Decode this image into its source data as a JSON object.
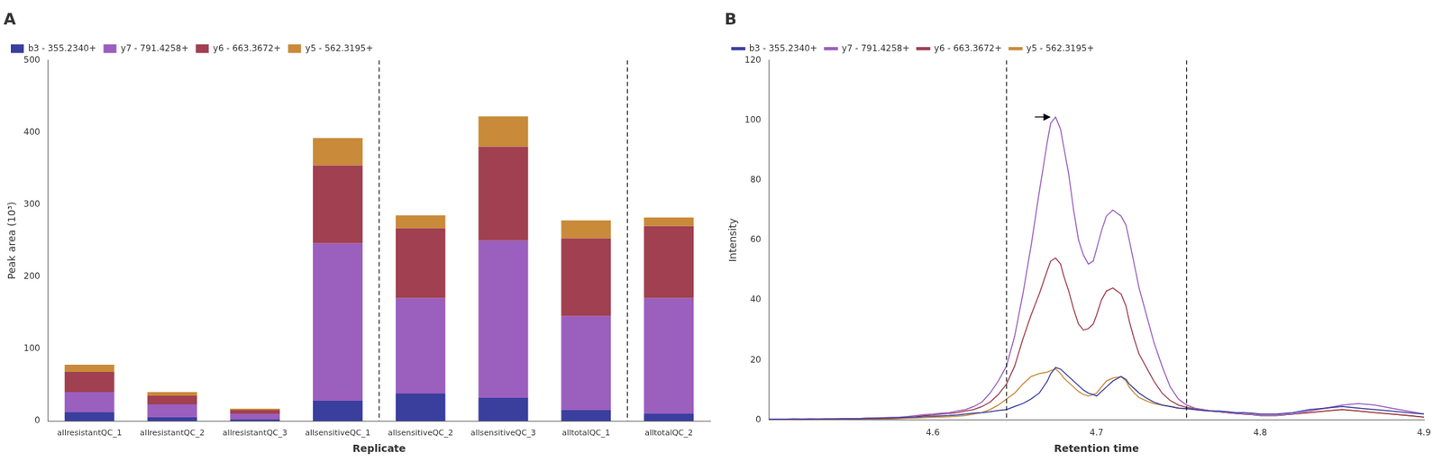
{
  "chart_data": [
    {
      "type": "bar",
      "title": "A",
      "stacked": true,
      "categories": [
        "allresistantQC_1",
        "allresistantQC_2",
        "allresistantQC_3",
        "allsensitiveQC_1",
        "allsensitiveQC_2",
        "allsensitiveQC_3",
        "alltotalQC_1",
        "alltotalQC_2"
      ],
      "series": [
        {
          "name": "b3 - 355.2340+",
          "color": "#3A3F9E",
          "values": [
            12,
            5,
            2,
            28,
            38,
            32,
            15,
            10
          ]
        },
        {
          "name": "y7 - 791.4258+",
          "color": "#9B5FBE",
          "values": [
            28,
            18,
            8,
            218,
            132,
            218,
            130,
            160
          ]
        },
        {
          "name": "y6 - 663.3672+",
          "color": "#A04050",
          "values": [
            28,
            12,
            5,
            108,
            97,
            130,
            108,
            100
          ]
        },
        {
          "name": "y5 - 562.3195+",
          "color": "#C98A3A",
          "values": [
            10,
            5,
            2,
            38,
            18,
            42,
            25,
            12
          ]
        }
      ],
      "xlabel": "Replicate",
      "ylabel": "Peak area (10³)",
      "ylim": [
        0,
        500
      ],
      "yticks": [
        0,
        100,
        200,
        300,
        400,
        500
      ],
      "vlines": [
        3.5,
        6.5
      ],
      "grid": false,
      "legend": "upper left"
    },
    {
      "type": "line",
      "title": "B",
      "x": [
        4.5,
        4.505,
        4.51,
        4.515,
        4.52,
        4.525,
        4.53,
        4.535,
        4.54,
        4.545,
        4.55,
        4.555,
        4.56,
        4.565,
        4.57,
        4.575,
        4.58,
        4.585,
        4.59,
        4.595,
        4.6,
        4.605,
        4.61,
        4.615,
        4.62,
        4.625,
        4.63,
        4.635,
        4.64,
        4.645,
        4.65,
        4.655,
        4.66,
        4.665,
        4.67,
        4.672,
        4.675,
        4.678,
        4.68,
        4.683,
        4.686,
        4.689,
        4.692,
        4.695,
        4.698,
        4.7,
        4.703,
        4.706,
        4.71,
        4.715,
        4.718,
        4.72,
        4.723,
        4.726,
        4.73,
        4.735,
        4.74,
        4.745,
        4.75,
        4.755,
        4.76,
        4.765,
        4.77,
        4.775,
        4.78,
        4.785,
        4.79,
        4.795,
        4.8,
        4.81,
        4.82,
        4.83,
        4.84,
        4.85,
        4.86,
        4.87,
        4.88,
        4.89,
        4.9
      ],
      "series": [
        {
          "name": "b3 - 355.2340+",
          "color": "#3A3F9E",
          "values": [
            0.3,
            0.3,
            0.3,
            0.4,
            0.3,
            0.4,
            0.3,
            0.4,
            0.4,
            0.5,
            0.5,
            0.5,
            0.6,
            0.6,
            0.7,
            0.7,
            0.8,
            0.9,
            1.0,
            1.2,
            1.3,
            1.4,
            1.5,
            1.7,
            2.0,
            2.3,
            2.5,
            2.8,
            3.2,
            3.5,
            4.5,
            5.5,
            7.0,
            9.0,
            13.0,
            15.5,
            17.5,
            17.0,
            16.0,
            14.5,
            13.0,
            11.5,
            10.0,
            9.0,
            8.5,
            8.0,
            9.5,
            11.0,
            13.0,
            14.5,
            13.5,
            12.0,
            10.5,
            9.0,
            7.5,
            6.0,
            5.0,
            4.5,
            4.0,
            3.8,
            3.5,
            3.2,
            3.0,
            3.0,
            2.8,
            2.5,
            2.5,
            2.3,
            2.0,
            2.0,
            2.5,
            3.5,
            4.0,
            4.5,
            4.0,
            3.5,
            3.0,
            2.5,
            2.0
          ]
        },
        {
          "name": "y7 - 791.4258+",
          "color": "#9B5FBE",
          "values": [
            0.2,
            0.2,
            0.2,
            0.3,
            0.3,
            0.3,
            0.3,
            0.4,
            0.4,
            0.4,
            0.5,
            0.5,
            0.6,
            0.7,
            0.8,
            0.9,
            1.0,
            1.2,
            1.5,
            1.8,
            2.0,
            2.3,
            2.5,
            3.0,
            3.5,
            4.5,
            6.0,
            9.0,
            13.0,
            18.0,
            28.0,
            42.0,
            58.0,
            76.0,
            93.0,
            99.0,
            101.0,
            97.0,
            91.0,
            82.0,
            70.0,
            60.0,
            55.0,
            52.0,
            53.0,
            57.0,
            63.0,
            68.0,
            70.0,
            68.0,
            65.0,
            60.0,
            52.0,
            44.0,
            36.0,
            26.0,
            18.0,
            11.0,
            7.0,
            5.0,
            4.0,
            3.5,
            3.0,
            2.8,
            2.5,
            2.2,
            2.0,
            1.8,
            1.5,
            1.5,
            2.0,
            3.0,
            4.0,
            5.0,
            5.5,
            5.0,
            4.0,
            3.0,
            2.0
          ]
        },
        {
          "name": "y6 - 663.3672+",
          "color": "#A04050",
          "values": [
            0.2,
            0.2,
            0.2,
            0.2,
            0.2,
            0.3,
            0.3,
            0.3,
            0.3,
            0.4,
            0.4,
            0.4,
            0.5,
            0.5,
            0.6,
            0.7,
            0.8,
            1.0,
            1.2,
            1.5,
            1.7,
            2.0,
            2.2,
            2.5,
            3.0,
            3.5,
            4.5,
            6.0,
            8.5,
            12.0,
            18.0,
            27.0,
            35.0,
            42.0,
            50.0,
            53.0,
            54.0,
            52.0,
            48.0,
            43.0,
            37.0,
            32.0,
            30.0,
            30.5,
            32.0,
            35.0,
            40.0,
            43.0,
            44.0,
            42.0,
            38.0,
            33.0,
            27.0,
            22.0,
            18.0,
            13.0,
            9.0,
            6.5,
            5.0,
            4.2,
            3.8,
            3.5,
            3.0,
            2.8,
            2.5,
            2.3,
            2.0,
            1.8,
            1.5,
            1.5,
            2.0,
            2.5,
            3.0,
            3.5,
            3.0,
            2.5,
            2.0,
            1.5,
            1.0
          ]
        },
        {
          "name": "y5 - 562.3195+",
          "color": "#C98A3A",
          "values": [
            0.1,
            0.1,
            0.1,
            0.1,
            0.2,
            0.2,
            0.2,
            0.2,
            0.2,
            0.3,
            0.3,
            0.3,
            0.3,
            0.4,
            0.4,
            0.4,
            0.5,
            0.6,
            0.7,
            0.8,
            0.9,
            1.0,
            1.1,
            1.3,
            1.5,
            2.0,
            2.5,
            3.5,
            5.0,
            7.0,
            9.0,
            12.0,
            14.5,
            15.5,
            16.0,
            16.5,
            17.0,
            15.5,
            14.0,
            12.5,
            11.0,
            9.5,
            8.5,
            8.0,
            8.5,
            9.0,
            11.0,
            13.0,
            14.0,
            14.5,
            13.0,
            11.0,
            9.0,
            7.5,
            6.5,
            5.5,
            5.0,
            4.5,
            4.0,
            3.8,
            3.5,
            3.2,
            3.0,
            2.8,
            2.5,
            2.2,
            2.0,
            1.8,
            1.5,
            1.5,
            2.0,
            2.5,
            3.0,
            3.5,
            3.0,
            2.5,
            2.0,
            1.5,
            1.0
          ]
        }
      ],
      "xlabel": "Retention time",
      "ylabel": "Intensity",
      "xlim": [
        4.5,
        4.9
      ],
      "xticks": [
        4.6,
        4.7,
        4.8,
        4.9
      ],
      "ylim": [
        0,
        120
      ],
      "yticks": [
        0,
        20,
        40,
        60,
        80,
        100,
        120
      ],
      "vlines": [
        4.645,
        4.755
      ],
      "arrow": {
        "x": 4.672,
        "y": 101
      },
      "grid": false,
      "legend": "upper left"
    }
  ]
}
